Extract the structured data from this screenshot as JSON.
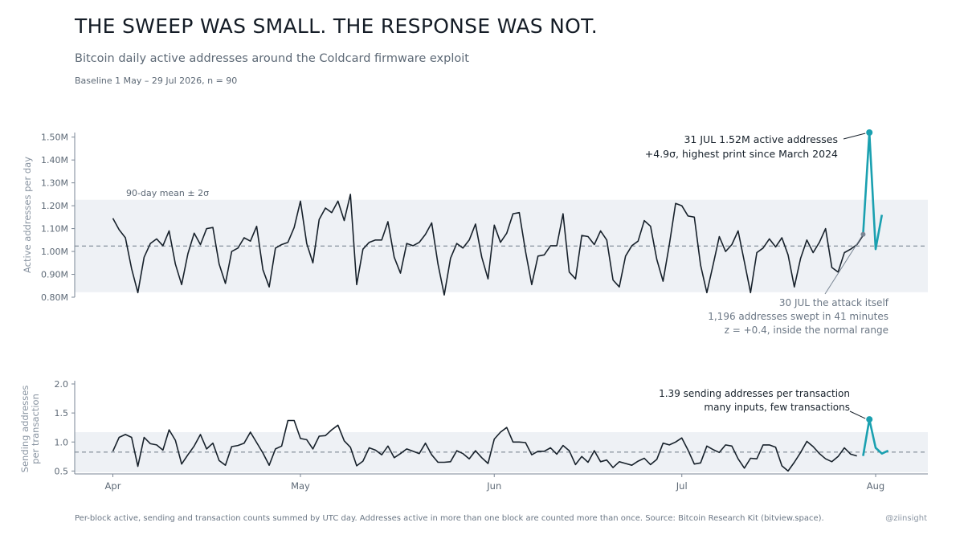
{
  "header": {
    "title": "THE SWEEP WAS SMALL. THE RESPONSE WAS NOT.",
    "subtitle": "Bitcoin daily active addresses around the Coldcard firmware exploit",
    "baseline": "Baseline 1 May – 29 Jul 2026, n = 90"
  },
  "footer": {
    "note": "Per-block active, sending and transaction counts summed by UTC day. Addresses active in more than one block are counted more than once. Source: Bitcoin Research Kit (bitview.space).",
    "handle": "@ziinsight"
  },
  "colors": {
    "line": "#17212b",
    "highlight": "#1aa0b0",
    "band": "#eef1f5",
    "mean": "#6d7a88",
    "axis": "#7a8694"
  },
  "chart_data": [
    {
      "type": "line",
      "ylabel": "Active addresses per day",
      "ylim": [
        0.8,
        1.52
      ],
      "y_ticks": [
        0.8,
        0.9,
        1.0,
        1.1,
        1.2,
        1.3,
        1.4,
        1.5
      ],
      "y_tick_labels": [
        "0.80M",
        "0.90M",
        "1.00M",
        "1.10M",
        "1.20M",
        "1.30M",
        "1.40M",
        "1.50M"
      ],
      "band_label": "90-day mean ± 2σ",
      "band": [
        0.822,
        1.226
      ],
      "mean": 1.024,
      "series": [
        {
          "x_start": "2026-04-01",
          "values": [
            1.145,
            1.095,
            1.06,
            0.925,
            0.82,
            0.975,
            1.035,
            1.055,
            1.025,
            1.09,
            0.945,
            0.855,
            0.99,
            1.08,
            1.03,
            1.1,
            1.105,
            0.945,
            0.86,
            1.0,
            1.015,
            1.06,
            1.045,
            1.11,
            0.92,
            0.845,
            1.015,
            1.03,
            1.04,
            1.105,
            1.22,
            1.035,
            0.95,
            1.14,
            1.19,
            1.17,
            1.22,
            1.135,
            1.25,
            0.855,
            1.01,
            1.04,
            1.05,
            1.05,
            1.13,
            0.975,
            0.905,
            1.035,
            1.025,
            1.04,
            1.075,
            1.125,
            0.945,
            0.81,
            0.97,
            1.035,
            1.015,
            1.05,
            1.12,
            0.975,
            0.88,
            1.115,
            1.04,
            1.08,
            1.165,
            1.17,
            1.0,
            0.855,
            0.98,
            0.985,
            1.025,
            1.025,
            1.165,
            0.91,
            0.88,
            1.07,
            1.065,
            1.03,
            1.09,
            1.05,
            0.875,
            0.845,
            0.98,
            1.025,
            1.045,
            1.135,
            1.11,
            0.965,
            0.87,
            1.03,
            1.21,
            1.2,
            1.155,
            1.15,
            0.94,
            0.82,
            0.94,
            1.065,
            1.0,
            1.03,
            1.09,
            0.955,
            0.82,
            0.995,
            1.015,
            1.055,
            1.02,
            1.06,
            0.985,
            0.845,
            0.97,
            1.05,
            0.995,
            1.04,
            1.1,
            0.93,
            0.91,
            0.995,
            1.01,
            1.03,
            1.07
          ]
        },
        {
          "x_start": "2026-07-30",
          "values": [
            1.075,
            1.52,
            1.01,
            1.16
          ]
        }
      ]
    },
    {
      "type": "line",
      "ylabel": "Sending addresses per transaction",
      "ylim": [
        0.45,
        2.0
      ],
      "y_ticks": [
        0.5,
        1.0,
        1.5,
        2.0
      ],
      "y_tick_labels": [
        "0.5",
        "1.0",
        "1.5",
        "2.0"
      ],
      "x_tick_labels": [
        "Apr",
        "May",
        "Jun",
        "Jul",
        "Aug"
      ],
      "x_ticks": [
        "2026-04-01",
        "2026-05-01",
        "2026-06-01",
        "2026-07-01",
        "2026-08-01"
      ],
      "band": [
        0.48,
        1.17
      ],
      "mean": 0.825,
      "series": [
        {
          "x_start": "2026-04-01",
          "values": [
            0.84,
            1.08,
            1.13,
            1.08,
            0.58,
            1.08,
            0.97,
            0.95,
            0.86,
            1.21,
            1.03,
            0.62,
            0.78,
            0.93,
            1.13,
            0.88,
            0.98,
            0.68,
            0.6,
            0.92,
            0.94,
            0.98,
            1.17,
            0.99,
            0.81,
            0.6,
            0.88,
            0.93,
            1.37,
            1.37,
            1.06,
            1.04,
            0.88,
            1.1,
            1.11,
            1.21,
            1.29,
            1.02,
            0.91,
            0.59,
            0.67,
            0.9,
            0.86,
            0.78,
            0.93,
            0.73,
            0.8,
            0.88,
            0.84,
            0.8,
            0.98,
            0.78,
            0.65,
            0.65,
            0.66,
            0.85,
            0.8,
            0.71,
            0.85,
            0.73,
            0.63,
            1.05,
            1.17,
            1.25,
            1.0,
            1.0,
            0.99,
            0.78,
            0.84,
            0.84,
            0.9,
            0.79,
            0.94,
            0.85,
            0.61,
            0.75,
            0.65,
            0.85,
            0.66,
            0.69,
            0.56,
            0.66,
            0.63,
            0.6,
            0.67,
            0.72,
            0.61,
            0.7,
            0.98,
            0.95,
            1.0,
            1.07,
            0.86,
            0.62,
            0.64,
            0.93,
            0.87,
            0.82,
            0.95,
            0.93,
            0.71,
            0.55,
            0.72,
            0.71,
            0.95,
            0.95,
            0.91,
            0.59,
            0.5,
            0.65,
            0.82,
            1.01,
            0.92,
            0.8,
            0.71,
            0.66,
            0.75,
            0.9,
            0.79,
            0.76
          ]
        },
        {
          "x_start": "2026-07-30",
          "values": [
            0.76,
            1.39,
            0.9,
            0.8,
            0.85
          ]
        }
      ]
    }
  ],
  "annotations": {
    "peak": {
      "date_label": "31 JUL",
      "value_label": "1.52M active addresses",
      "line2": "+4.9σ, highest print since March 2024"
    },
    "attack": {
      "date_label": "30 JUL",
      "title": "the attack itself",
      "line2": "1,196 addresses swept in 41 minutes",
      "line3": "z = +0.4, inside the normal range"
    },
    "ratio": {
      "line1": "1.39 sending addresses per transaction",
      "line2": "many inputs, few transactions"
    }
  }
}
